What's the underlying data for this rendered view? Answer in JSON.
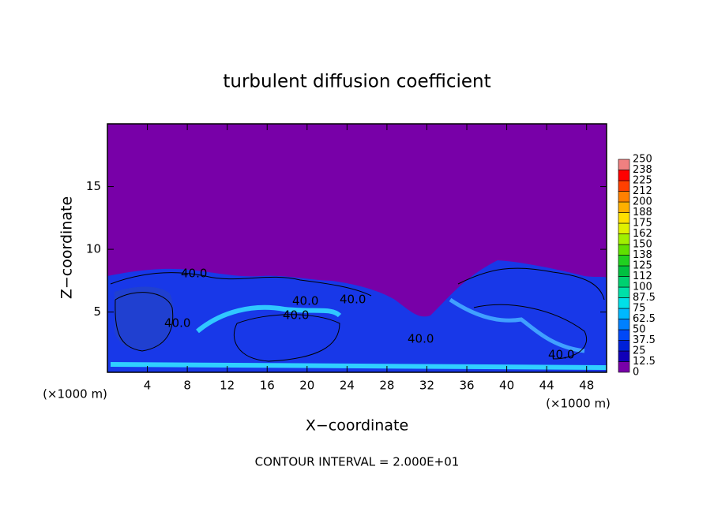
{
  "chart_data": {
    "type": "contour",
    "title": "turbulent diffusion coefficient",
    "x_label": "X−coordinate",
    "y_label": "Z−coordinate",
    "x_unit": "(×1000 m)",
    "x_unit_right": "(×1000 m)",
    "footer": "CONTOUR INTERVAL = 2.000E+01",
    "contour_labels": [
      "40.0",
      "40.0",
      "40.0",
      "40.0",
      "40.0",
      "40.0",
      "40.0"
    ],
    "xlim": [
      0,
      50
    ],
    "xticks": [
      4,
      8,
      12,
      16,
      20,
      24,
      28,
      32,
      36,
      40,
      44,
      48
    ],
    "ylim": [
      0.2,
      20
    ],
    "yticks": [
      5,
      10,
      15
    ],
    "colorbar": {
      "ticks": [
        0,
        12.5,
        25,
        37.5,
        50,
        62.5,
        75,
        87.5,
        100,
        {
          "value": 112.5,
          "label": "112"
        },
        125,
        {
          "value": 137.5,
          "label": "138"
        },
        150,
        {
          "value": 162.5,
          "label": "162"
        },
        175,
        {
          "value": 187.5,
          "label": "188"
        },
        200,
        {
          "value": 212.5,
          "label": "212"
        },
        225,
        {
          "value": 237.5,
          "label": "238"
        },
        250
      ],
      "colors": [
        "#7800a8",
        "#1000b8",
        "#0020d8",
        "#0048f8",
        "#0080ff",
        "#00b8ff",
        "#00e0e8",
        "#00e0a8",
        "#00d070",
        "#00c040",
        "#20d020",
        "#60e000",
        "#a0f000",
        "#e0f000",
        "#ffe000",
        "#ffb000",
        "#ff8000",
        "#ff4000",
        "#ff0000",
        "#f08080"
      ]
    }
  }
}
